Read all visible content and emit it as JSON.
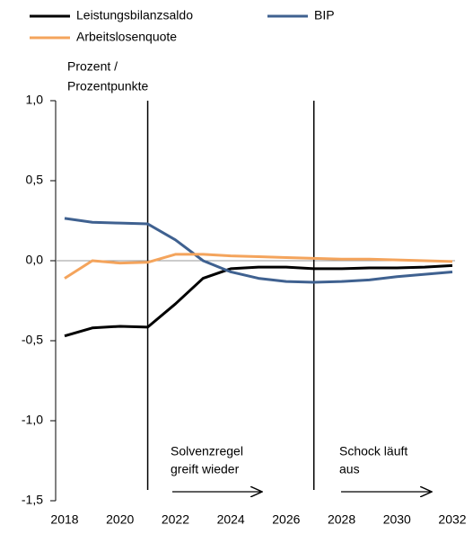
{
  "chart_data": {
    "type": "line",
    "y_label": [
      "Prozent /",
      "Prozentpunkte"
    ],
    "x": [
      2018,
      2019,
      2020,
      2021,
      2022,
      2023,
      2024,
      2025,
      2026,
      2027,
      2028,
      2029,
      2030,
      2031,
      2032
    ],
    "series": [
      {
        "name": "Leistungsbilanzsaldo",
        "color": "#000000",
        "values": [
          -0.47,
          -0.42,
          -0.41,
          -0.415,
          -0.27,
          -0.11,
          -0.05,
          -0.04,
          -0.04,
          -0.05,
          -0.05,
          -0.045,
          -0.045,
          -0.04,
          -0.03
        ]
      },
      {
        "name": "BIP",
        "color": "#3f6190",
        "values": [
          0.265,
          0.24,
          0.235,
          0.23,
          0.13,
          0.0,
          -0.07,
          -0.11,
          -0.13,
          -0.135,
          -0.13,
          -0.12,
          -0.1,
          -0.085,
          -0.07
        ]
      },
      {
        "name": "Arbeitslosenquote",
        "color": "#f4a45c",
        "values": [
          -0.11,
          0.0,
          -0.015,
          -0.01,
          0.04,
          0.04,
          0.03,
          0.025,
          0.02,
          0.015,
          0.01,
          0.01,
          0.005,
          0.0,
          -0.005
        ]
      }
    ],
    "xlim": [
      2018,
      2032
    ],
    "xticks": [
      2018,
      2020,
      2022,
      2024,
      2026,
      2028,
      2030,
      2032
    ],
    "ylim": [
      -1.5,
      1.0
    ],
    "yticks": [
      {
        "value": -1.5,
        "label": "-1,5"
      },
      {
        "value": -1,
        "label": "-1,0"
      },
      {
        "value": -0.5,
        "label": "-0,5"
      },
      {
        "value": 0,
        "label": "0,0"
      },
      {
        "value": 0.5,
        "label": "0,5"
      },
      {
        "value": 1,
        "label": "1,0"
      }
    ],
    "vlines": [
      2021,
      2027
    ],
    "annotations": [
      {
        "lines": [
          "Solvenzregel",
          "greift wieder"
        ]
      },
      {
        "lines": [
          "Schock läuft",
          "aus"
        ]
      }
    ]
  }
}
